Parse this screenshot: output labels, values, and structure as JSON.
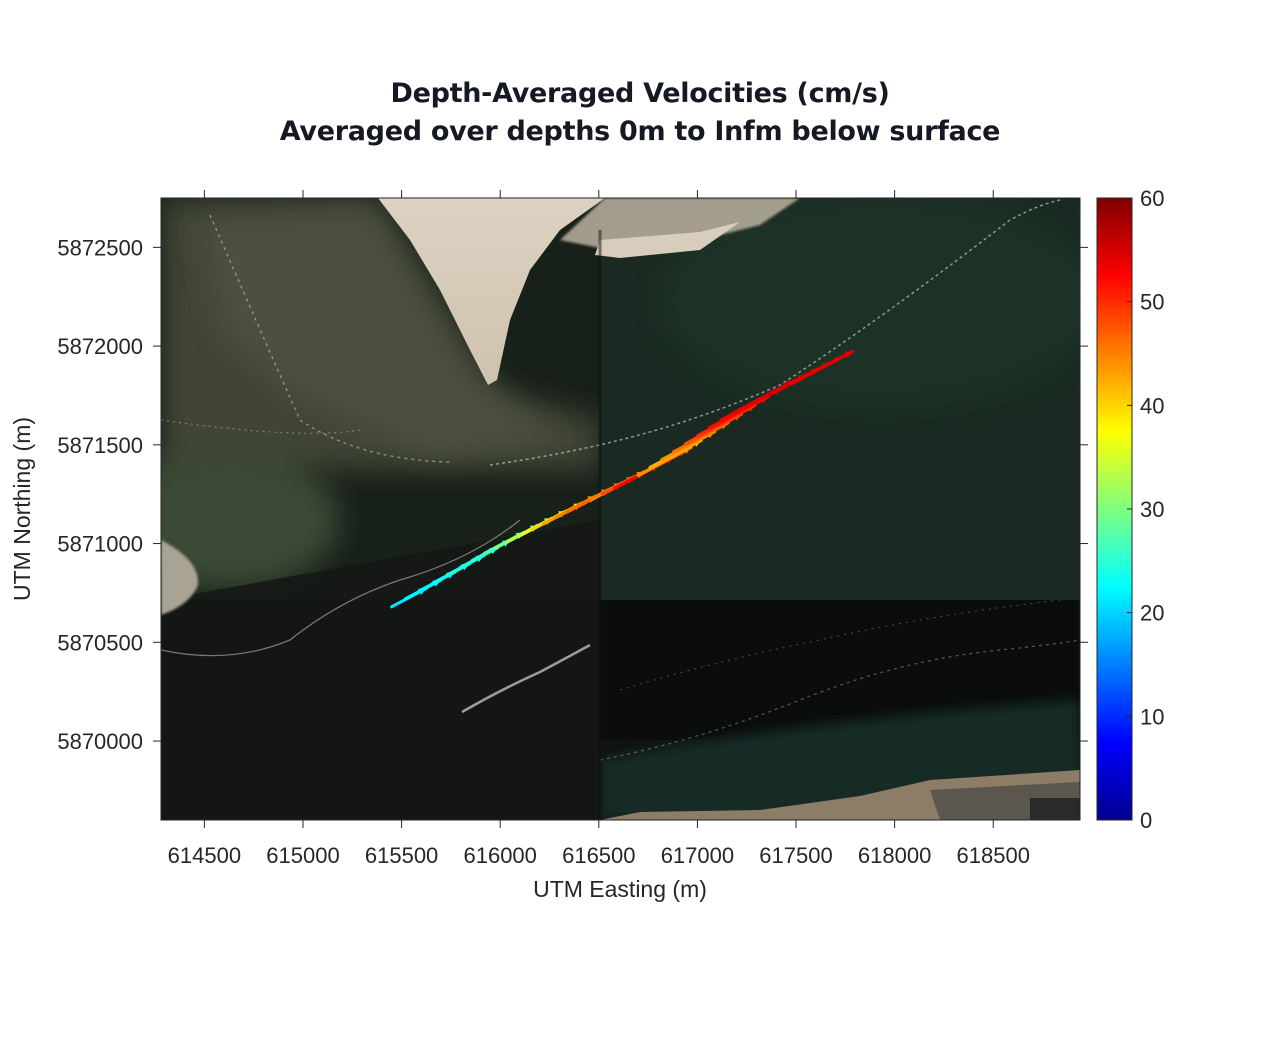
{
  "chart_data": {
    "type": "quiver-on-map",
    "title": "Depth-Averaged Velocities (cm/s)",
    "subtitle": "Averaged over depths 0m to Infm below surface",
    "xlabel": "UTM Easting (m)",
    "ylabel": "UTM Northing (m)",
    "xlim": [
      614280,
      618940
    ],
    "ylim": [
      5869600,
      5872750
    ],
    "xticks": [
      614500,
      615000,
      615500,
      616000,
      616500,
      617000,
      617500,
      618000,
      618500
    ],
    "xtick_labels": [
      "614500",
      "615000",
      "615500",
      "616000",
      "616500",
      "617000",
      "617500",
      "618000",
      "618500"
    ],
    "yticks": [
      5870000,
      5870500,
      5871000,
      5871500,
      5872000,
      5872500
    ],
    "ytick_labels": [
      "5870000",
      "5870500",
      "5871000",
      "5871500",
      "5872000",
      "5872500"
    ],
    "grid": false,
    "background": "satellite imagery of tidal inlet",
    "colorbar": {
      "label": "",
      "range": [
        0,
        60
      ],
      "ticks": [
        0,
        10,
        20,
        30,
        40,
        50,
        60
      ],
      "tick_labels": [
        "0",
        "10",
        "20",
        "30",
        "40",
        "50",
        "60"
      ],
      "colormap": "jet",
      "position": "right"
    },
    "vectors": [
      {
        "x": 615450,
        "y": 5870680,
        "speed": 21
      },
      {
        "x": 615520,
        "y": 5870720,
        "speed": 22
      },
      {
        "x": 615590,
        "y": 5870760,
        "speed": 22
      },
      {
        "x": 615660,
        "y": 5870800,
        "speed": 23
      },
      {
        "x": 615730,
        "y": 5870840,
        "speed": 24
      },
      {
        "x": 615800,
        "y": 5870880,
        "speed": 24
      },
      {
        "x": 615860,
        "y": 5870915,
        "speed": 25
      },
      {
        "x": 615920,
        "y": 5870950,
        "speed": 27
      },
      {
        "x": 615980,
        "y": 5870980,
        "speed": 30
      },
      {
        "x": 616040,
        "y": 5871010,
        "speed": 33
      },
      {
        "x": 616100,
        "y": 5871040,
        "speed": 36
      },
      {
        "x": 616160,
        "y": 5871070,
        "speed": 40
      },
      {
        "x": 616220,
        "y": 5871100,
        "speed": 43
      },
      {
        "x": 616280,
        "y": 5871130,
        "speed": 45
      },
      {
        "x": 616340,
        "y": 5871160,
        "speed": 46
      },
      {
        "x": 616400,
        "y": 5871190,
        "speed": 47
      },
      {
        "x": 616460,
        "y": 5871220,
        "speed": 45
      },
      {
        "x": 616520,
        "y": 5871250,
        "speed": 48
      },
      {
        "x": 616580,
        "y": 5871280,
        "speed": 52
      },
      {
        "x": 616640,
        "y": 5871310,
        "speed": 53
      },
      {
        "x": 616700,
        "y": 5871345,
        "speed": 44
      },
      {
        "x": 616760,
        "y": 5871385,
        "speed": 42
      },
      {
        "x": 616820,
        "y": 5871425,
        "speed": 44
      },
      {
        "x": 616880,
        "y": 5871465,
        "speed": 46
      },
      {
        "x": 616940,
        "y": 5871505,
        "speed": 48
      },
      {
        "x": 617000,
        "y": 5871545,
        "speed": 50
      },
      {
        "x": 617060,
        "y": 5871585,
        "speed": 52
      },
      {
        "x": 617120,
        "y": 5871625,
        "speed": 53
      },
      {
        "x": 617180,
        "y": 5871660,
        "speed": 54
      },
      {
        "x": 617240,
        "y": 5871690,
        "speed": 54
      },
      {
        "x": 617300,
        "y": 5871720,
        "speed": 55
      },
      {
        "x": 617360,
        "y": 5871750,
        "speed": 55
      },
      {
        "x": 617420,
        "y": 5871780,
        "speed": 55
      },
      {
        "x": 617480,
        "y": 5871810,
        "speed": 54
      }
    ]
  },
  "figure": {
    "title_line_1": "Depth-Averaged Velocities (cm/s)",
    "title_line_2": "Averaged over depths 0m to Infm below surface",
    "xlabel": "UTM Easting (m)",
    "ylabel": "UTM Northing (m)"
  }
}
